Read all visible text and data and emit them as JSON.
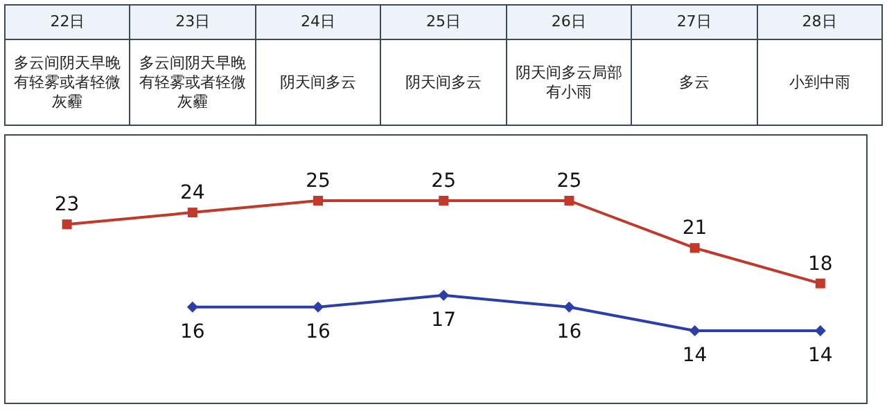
{
  "chart_data": {
    "type": "line",
    "categories": [
      "22日",
      "23日",
      "24日",
      "25日",
      "26日",
      "27日",
      "28日"
    ],
    "annotations": [
      "多云间阴天早晚有轻雾或者轻微灰霾",
      "多云间阴天早晚有轻雾或者轻微灰霾",
      "阴天间多云",
      "阴天间多云",
      "阴天间多云局部有小雨",
      "多云",
      "小到中雨"
    ],
    "series": [
      {
        "color": "#c0392b",
        "marker": "square",
        "values": [
          23,
          24,
          25,
          25,
          25,
          21,
          18
        ]
      },
      {
        "color": "#2c3fa8",
        "marker": "diamond",
        "values": [
          null,
          16,
          16,
          17,
          16,
          14,
          14
        ]
      }
    ],
    "data_labels": true
  }
}
